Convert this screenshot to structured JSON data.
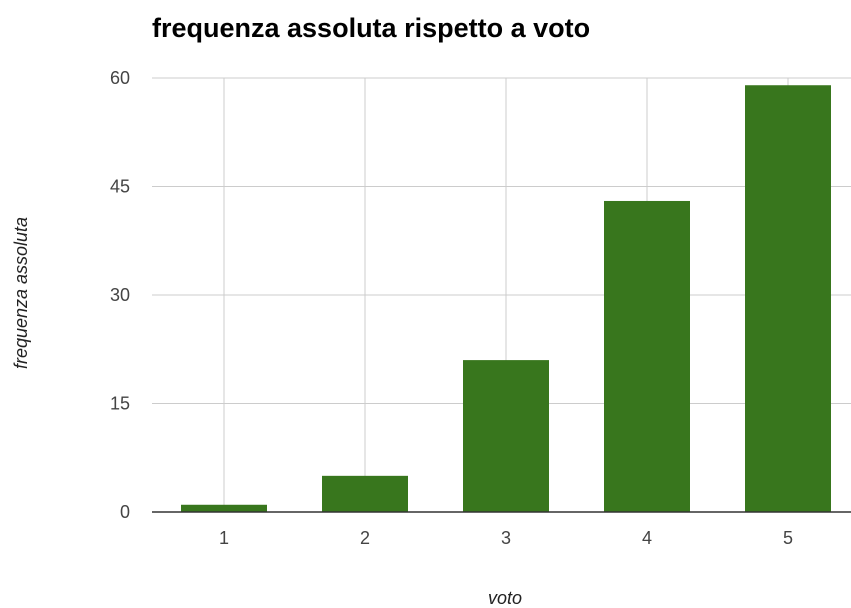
{
  "chart_data": {
    "type": "bar",
    "title": "frequenza assoluta rispetto a voto",
    "xlabel": "voto",
    "ylabel": "frequenza assoluta",
    "categories": [
      "1",
      "2",
      "3",
      "4",
      "5"
    ],
    "values": [
      1,
      5,
      21,
      43,
      59
    ],
    "ylim": [
      0,
      60
    ],
    "yticks": [
      0,
      15,
      30,
      45,
      60
    ],
    "grid": true,
    "bar_color": "#38761d"
  }
}
